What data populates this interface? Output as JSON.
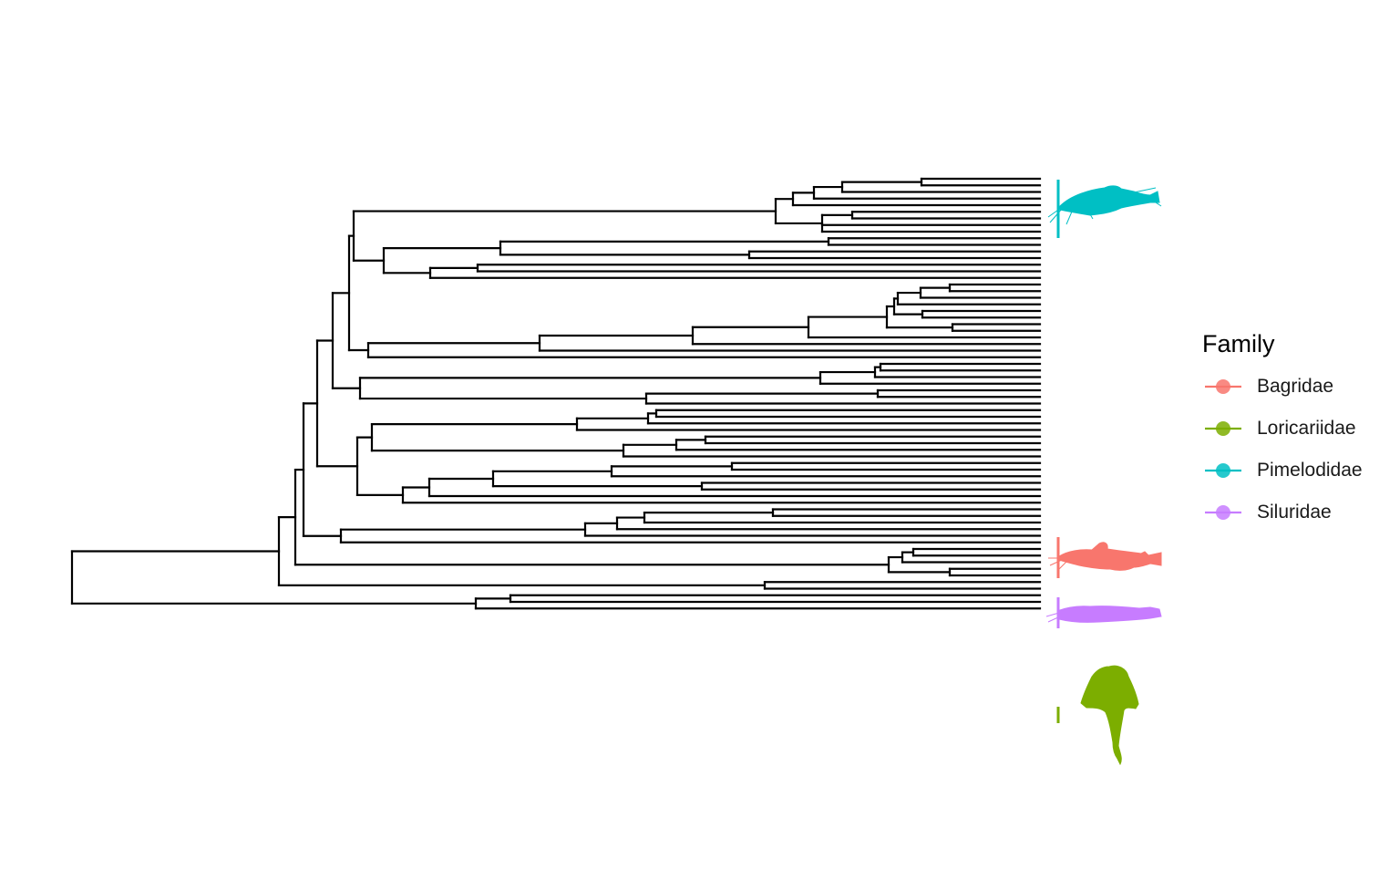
{
  "legend": {
    "title": "Family",
    "items": [
      {
        "label": "Bagridae",
        "color": "#F8766D"
      },
      {
        "label": "Loricariidae",
        "color": "#7CAE00"
      },
      {
        "label": "Pimelodidae",
        "color": "#00BFC4"
      },
      {
        "label": "Siluridae",
        "color": "#C77CFF"
      }
    ]
  },
  "clades": [
    {
      "family": "Pimelodidae",
      "silhouette": "pimelodid-catfish-silhouette"
    },
    {
      "family": "Bagridae",
      "silhouette": "bagrid-catfish-silhouette"
    },
    {
      "family": "Siluridae",
      "silhouette": "silurid-catfish-silhouette"
    },
    {
      "family": "Loricariidae",
      "silhouette": "loricariid-pleco-silhouette"
    }
  ]
}
